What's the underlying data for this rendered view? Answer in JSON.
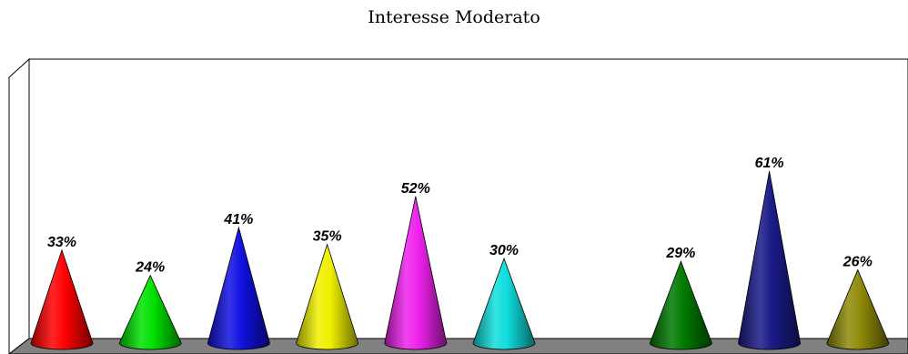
{
  "chart_data": {
    "type": "bar",
    "title": "Interesse Moderato",
    "xlabel": "",
    "ylabel": "",
    "ylim": [
      0,
      100
    ],
    "grid": false,
    "legend": "none",
    "mark_shape": "cone",
    "categories": [
      "",
      "",
      "",
      "",
      "",
      "",
      "",
      "",
      "",
      ""
    ],
    "values": [
      33,
      24,
      41,
      35,
      52,
      30,
      null,
      29,
      61,
      26
    ],
    "data_labels": [
      "33%",
      "24%",
      "41%",
      "35%",
      "52%",
      "30%",
      "",
      "29%",
      "61%",
      "26%"
    ],
    "colors": [
      "#ff0000",
      "#00e000",
      "#1010e0",
      "#f0f000",
      "#ee22ee",
      "#10dddd",
      "",
      "#007a00",
      "#1a1a88",
      "#8f8a08"
    ]
  }
}
